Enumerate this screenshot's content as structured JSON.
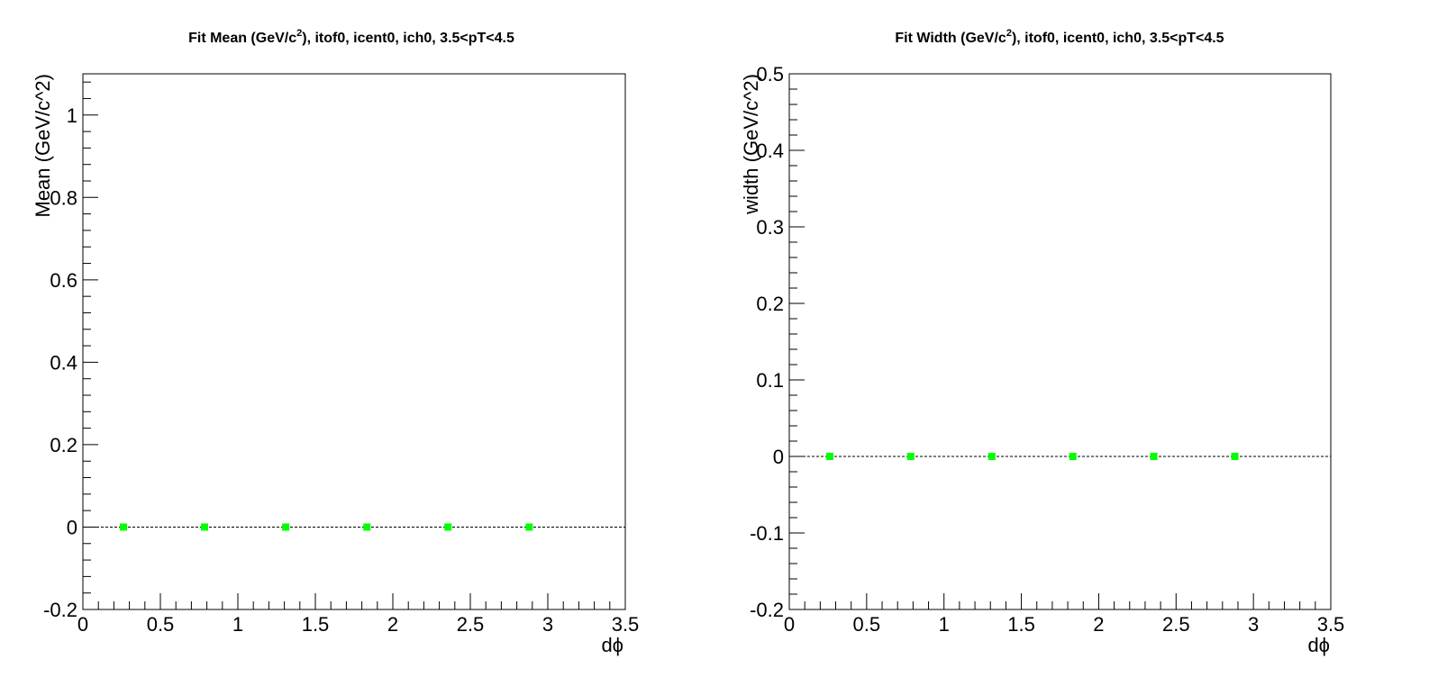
{
  "colors": {
    "marker": "#00ff00",
    "axis": "#000000",
    "zero_line": "#000000",
    "background": "#ffffff"
  },
  "chart_data": [
    {
      "type": "scatter",
      "title_prefix": "Fit Mean (GeV/c",
      "title_sup": "2",
      "title_suffix": "), itof0, icent0, ich0, 3.5<pT<4.5",
      "xlabel": "dϕ",
      "ylabel": "Mean (GeV/c^2)",
      "xlim": [
        0,
        3.5
      ],
      "ylim": [
        -0.2,
        1.1
      ],
      "xticks": [
        0,
        0.5,
        1,
        1.5,
        2,
        2.5,
        3,
        3.5
      ],
      "xtick_labels": [
        "0",
        "0.5",
        "1",
        "1.5",
        "2",
        "2.5",
        "3",
        "3.5"
      ],
      "yticks": [
        -0.2,
        0,
        0.2,
        0.4,
        0.6,
        0.8,
        1
      ],
      "ytick_labels": [
        "-0.2",
        "0",
        "0.2",
        "0.4",
        "0.6",
        "0.8",
        "1"
      ],
      "x": [
        0.262,
        0.785,
        1.309,
        1.833,
        2.356,
        2.88
      ],
      "y": [
        0,
        0,
        0,
        0,
        0,
        0
      ],
      "reference_line_y": 0
    },
    {
      "type": "scatter",
      "title_prefix": "Fit Width (GeV/c",
      "title_sup": "2",
      "title_suffix": "), itof0, icent0, ich0, 3.5<pT<4.5",
      "xlabel": "dϕ",
      "ylabel": "width (GeV/c^2)",
      "xlim": [
        0,
        3.5
      ],
      "ylim": [
        -0.2,
        0.5
      ],
      "xticks": [
        0,
        0.5,
        1,
        1.5,
        2,
        2.5,
        3,
        3.5
      ],
      "xtick_labels": [
        "0",
        "0.5",
        "1",
        "1.5",
        "2",
        "2.5",
        "3",
        "3.5"
      ],
      "yticks": [
        -0.2,
        -0.1,
        0,
        0.1,
        0.2,
        0.3,
        0.4,
        0.5
      ],
      "ytick_labels": [
        "-0.2",
        "-0.1",
        "0",
        "0.1",
        "0.2",
        "0.3",
        "0.4",
        "0.5"
      ],
      "x": [
        0.262,
        0.785,
        1.309,
        1.833,
        2.356,
        2.88
      ],
      "y": [
        0,
        0,
        0,
        0,
        0,
        0
      ],
      "reference_line_y": 0
    }
  ]
}
